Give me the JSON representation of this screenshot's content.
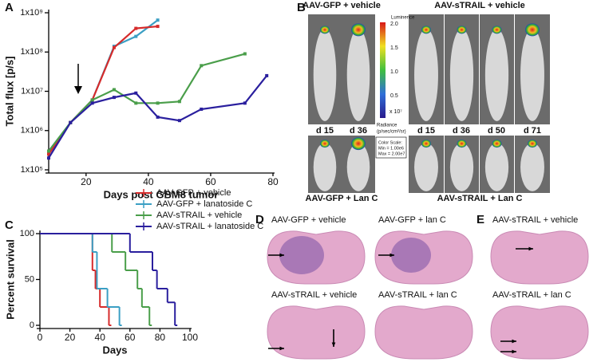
{
  "panel_labels": [
    "A",
    "B",
    "C",
    "D",
    "E"
  ],
  "chart_data": [
    {
      "type": "line",
      "y_label": "Total flux [p/s]",
      "x_label": "Days post GBM8 tumor",
      "log_y": true,
      "xlim": [
        8,
        80
      ],
      "xticks": [
        20,
        40,
        60,
        80
      ],
      "ylim": [
        100000,
        1000000000
      ],
      "yticks": [
        {
          "value": 100000,
          "label": "1x10⁵"
        },
        {
          "value": 1000000,
          "label": "1x10⁶"
        },
        {
          "value": 10000000,
          "label": "1x10⁷"
        },
        {
          "value": 100000000,
          "label": "1x10⁸"
        },
        {
          "value": 1000000000,
          "label": "1x10⁹"
        }
      ],
      "series": [
        {
          "color": "#3b9fc4",
          "x": [
            8,
            15,
            22,
            29,
            36,
            43
          ],
          "values": [
            300000,
            1600000,
            6000000,
            140000000,
            250000000,
            650000000
          ]
        },
        {
          "color": "#d62b2b",
          "x": [
            8,
            15,
            22,
            29,
            36,
            43
          ],
          "values": [
            250000,
            1600000,
            6000000,
            130000000,
            400000000,
            450000000
          ]
        },
        {
          "color": "#4a9e4a",
          "x": [
            8,
            15,
            22,
            29,
            36,
            43,
            50,
            57,
            71
          ],
          "values": [
            300000,
            1600000,
            6000000,
            11000000,
            5000000,
            5000000,
            5500000,
            45000000,
            90000000
          ]
        },
        {
          "color": "#2a1f9e",
          "x": [
            8,
            15,
            22,
            29,
            36,
            43,
            50,
            57,
            71,
            78
          ],
          "values": [
            200000,
            1600000,
            5000000,
            7000000,
            9000000,
            2200000,
            1800000,
            3500000,
            5000000,
            25000000
          ]
        }
      ]
    },
    {
      "type": "step",
      "y_label": "Percent survival",
      "x_label": "Days",
      "xlim": [
        0,
        100
      ],
      "xticks": [
        0,
        20,
        40,
        60,
        80,
        100
      ],
      "ylim": [
        0,
        100
      ],
      "yticks": [
        0,
        50,
        100
      ],
      "series": [
        {
          "name": "AAV-GFP + vehicle",
          "color": "#d62b2b",
          "x": [
            0,
            35,
            37,
            40,
            46
          ],
          "values": [
            100,
            60,
            40,
            20,
            0
          ]
        },
        {
          "name": "AAV-GFP + lanatoside C",
          "color": "#3b9fc4",
          "x": [
            0,
            35,
            38,
            45,
            53
          ],
          "values": [
            100,
            80,
            40,
            20,
            0
          ]
        },
        {
          "name": "AAV-sTRAIL + vehicle",
          "color": "#4a9e4a",
          "x": [
            0,
            48,
            57,
            65,
            68,
            73
          ],
          "values": [
            100,
            80,
            60,
            40,
            20,
            0
          ]
        },
        {
          "name": "AAV-sTRAIL + lanatoside C",
          "color": "#2a1f9e",
          "x": [
            0,
            60,
            75,
            78,
            85,
            90
          ],
          "values": [
            100,
            80,
            60,
            40,
            25,
            0
          ]
        }
      ]
    }
  ],
  "panel_b": {
    "top_left": "AAV-GFP + vehicle",
    "top_right": "AAV-sTRAIL + vehicle",
    "days": [
      "d 15",
      "d 36",
      "d 15",
      "d 36",
      "d 50",
      "d 71"
    ],
    "bottom_left": "AAV-GFP + Lan C",
    "bottom_right": "AAV-sTRAIL + Lan C",
    "colorbar": {
      "title": "Luminence",
      "ticks": [
        "2.0",
        "1.5",
        "1.0",
        "0.5"
      ],
      "multiplier": "x 10⁷",
      "unit1": "Radiance",
      "unit2": "(p/sec/cm²/sr)",
      "scale": [
        "Color Scale:",
        "Min = 1.00e6",
        "Max = 2.00e7"
      ]
    }
  },
  "panel_d": {
    "labels": [
      "AAV-GFP + vehicle",
      "AAV-GFP + lan C",
      "AAV-sTRAIL + vehicle",
      "AAV-sTRAIL + lan C"
    ]
  },
  "panel_e": {
    "labels": [
      "AAV-sTRAIL + vehicle",
      "AAV-sTRAIL + lan C"
    ]
  }
}
